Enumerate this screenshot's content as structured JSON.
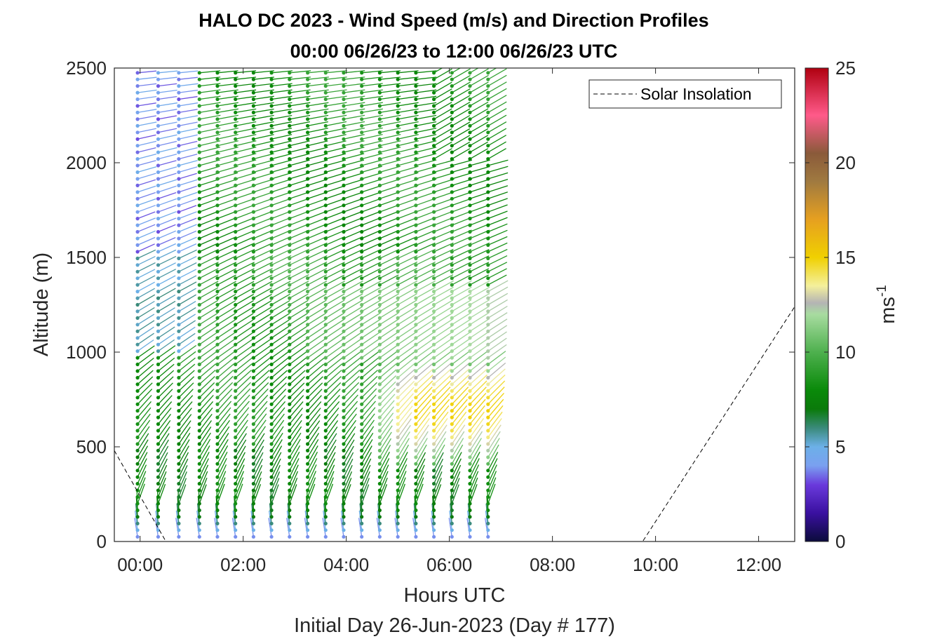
{
  "chart_data": {
    "type": "wind-barb-profile",
    "title_line1": "HALO DC 2023 - Wind Speed (m/s) and Direction Profiles",
    "title_line2": "00:00 06/26/23 to 12:00 06/26/23  UTC",
    "xlabel": "Hours UTC",
    "xlabel2": "Initial Day 26-Jun-2023 (Day # 177)",
    "ylabel": "Altitude (m)",
    "xlim_hours": [
      -0.5,
      12.7
    ],
    "ylim": [
      0,
      2500
    ],
    "x_ticks": [
      {
        "value": 0,
        "label": "00:00"
      },
      {
        "value": 2,
        "label": "02:00"
      },
      {
        "value": 4,
        "label": "04:00"
      },
      {
        "value": 6,
        "label": "06:00"
      },
      {
        "value": 8,
        "label": "08:00"
      },
      {
        "value": 10,
        "label": "10:00"
      },
      {
        "value": 12,
        "label": "12:00"
      }
    ],
    "y_ticks": [
      {
        "value": 0,
        "label": "0"
      },
      {
        "value": 500,
        "label": "500"
      },
      {
        "value": 1000,
        "label": "1000"
      },
      {
        "value": 1500,
        "label": "1500"
      },
      {
        "value": 2000,
        "label": "2000"
      },
      {
        "value": 2500,
        "label": "2500"
      }
    ],
    "colorbar": {
      "label": "ms",
      "label_superscript": "-1",
      "range": [
        0,
        25
      ],
      "ticks": [
        {
          "value": 0,
          "label": "0"
        },
        {
          "value": 5,
          "label": "5"
        },
        {
          "value": 10,
          "label": "10"
        },
        {
          "value": 15,
          "label": "15"
        },
        {
          "value": 20,
          "label": "20"
        },
        {
          "value": 25,
          "label": "25"
        }
      ],
      "stops": [
        {
          "v": 0,
          "c": "#0b0b3b"
        },
        {
          "v": 1.5,
          "c": "#3a10a0"
        },
        {
          "v": 3,
          "c": "#6a3adc"
        },
        {
          "v": 4,
          "c": "#7aa0f0"
        },
        {
          "v": 5,
          "c": "#6cb0e8"
        },
        {
          "v": 6,
          "c": "#3a8a7a"
        },
        {
          "v": 7,
          "c": "#0a7a0a"
        },
        {
          "v": 8,
          "c": "#0a8a0a"
        },
        {
          "v": 10,
          "c": "#4eb04e"
        },
        {
          "v": 12,
          "c": "#a8dca0"
        },
        {
          "v": 12.6,
          "c": "#b4b4b4"
        },
        {
          "v": 13.5,
          "c": "#f4f09c"
        },
        {
          "v": 15,
          "c": "#f0d000"
        },
        {
          "v": 17,
          "c": "#e6a020"
        },
        {
          "v": 19,
          "c": "#a07a40"
        },
        {
          "v": 20.5,
          "c": "#8a5a3a"
        },
        {
          "v": 22.5,
          "c": "#ff5a8a"
        },
        {
          "v": 25,
          "c": "#b00010"
        }
      ]
    },
    "legend": {
      "entries": [
        "Solar Insolation"
      ],
      "placement": "top-right",
      "line_style": "dashed"
    },
    "series": [
      {
        "name": "Solar Insolation",
        "style": "dashed-black",
        "x": [
          -0.5,
          0.5,
          9.75,
          12.7
        ],
        "y": [
          480,
          0,
          0,
          1240
        ]
      }
    ],
    "wind_profiles": {
      "profile_times_hours": [
        -0.05,
        0.35,
        0.75,
        1.15,
        1.5,
        1.85,
        2.2,
        2.55,
        2.9,
        3.25,
        3.6,
        3.95,
        4.3,
        4.65,
        5.0,
        5.35,
        5.7,
        6.05,
        6.4,
        6.75
      ],
      "altitude_range_m": [
        0,
        2500
      ],
      "altitude_step_m": 35,
      "pattern": "Speeds ~3-6 m/s below 100 m, ~7-9 m/s from 100-500 m, ~8-10 m/s above 1500 m; purple/blue 3-5 m/s aloft in the first hour; 12-15 m/s jet between 400 and 950 m from 04:30 to 06:45. Winds generally from the southwest (upper-right tails) with southerly winds near the surface."
    }
  }
}
